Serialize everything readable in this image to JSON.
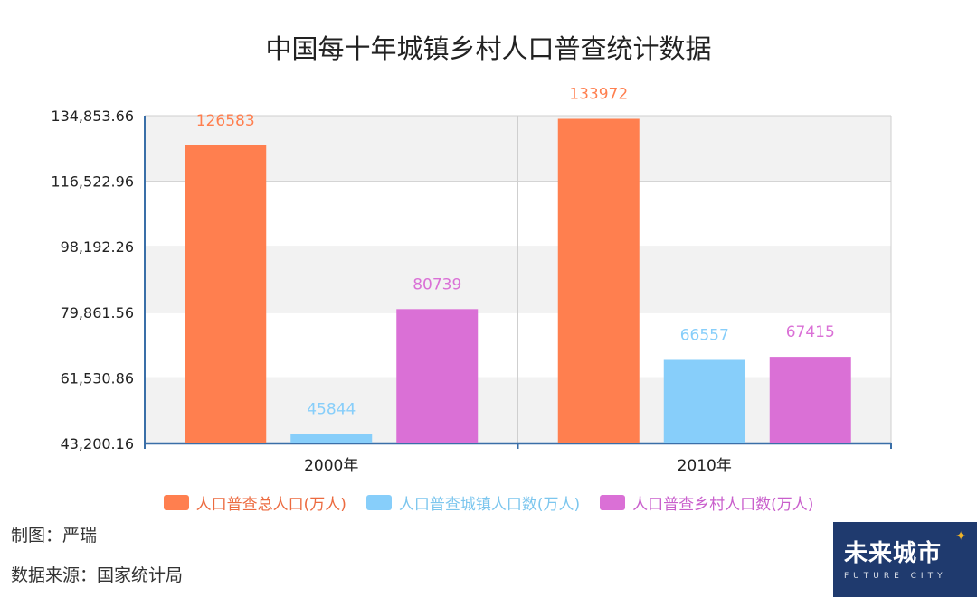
{
  "chart_data": {
    "type": "bar",
    "title": "中国每十年城镇乡村人口普查统计数据",
    "categories": [
      "2000年",
      "2010年"
    ],
    "series": [
      {
        "name": "人口普查总人口(万人)",
        "color": "#ff7f4f",
        "values": [
          126583,
          133972
        ]
      },
      {
        "name": "人口普查城镇人口数(万人)",
        "color": "#87cefa",
        "values": [
          45844,
          66557
        ]
      },
      {
        "name": "人口普查乡村人口数(万人)",
        "color": "#da70d6",
        "values": [
          80739,
          67415
        ]
      }
    ],
    "ylim": [
      43200.16,
      134853.66
    ],
    "yticks": [
      "43,200.16",
      "61,530.86",
      "79,861.56",
      "98,192.26",
      "116,522.96",
      "134,853.66"
    ],
    "xlabel": "",
    "ylabel": "",
    "grid": true,
    "legend": "bottom"
  },
  "footer": {
    "credit": "制图：严瑞",
    "source": "数据来源：国家统计局"
  },
  "logo": {
    "main": "未来城市",
    "sub": "FUTURE CITY"
  }
}
